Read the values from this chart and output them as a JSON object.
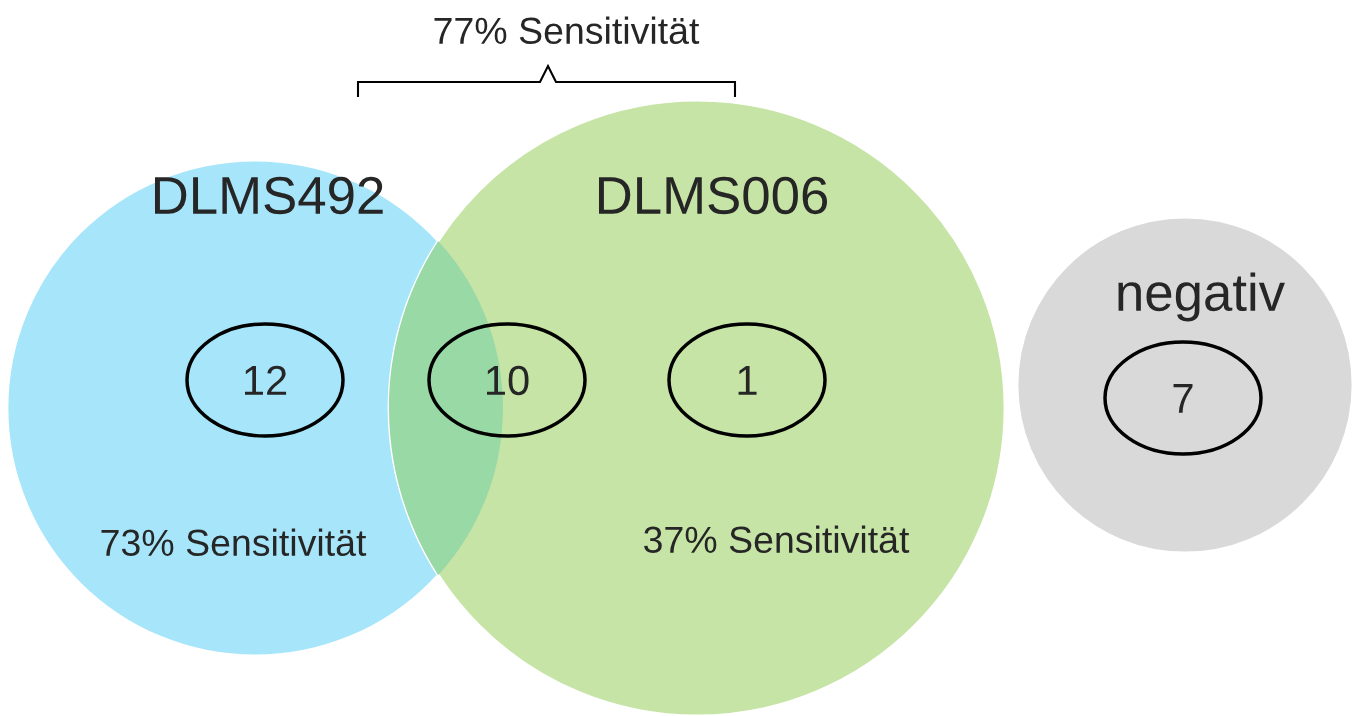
{
  "chart_data": {
    "type": "other",
    "categories": [
      "DLMS492",
      null,
      "DLMS006",
      "negativ"
    ],
    "values": [
      12,
      10,
      1,
      7
    ],
    "data_labels": true,
    "colors": [
      "#a6e5fa",
      "#98d9a5",
      "#c6e4a5",
      "#d9d9d9"
    ],
    "annotations": [
      "77% Sensitivität",
      "73% Sensitivität",
      "37% Sensitivität"
    ]
  }
}
